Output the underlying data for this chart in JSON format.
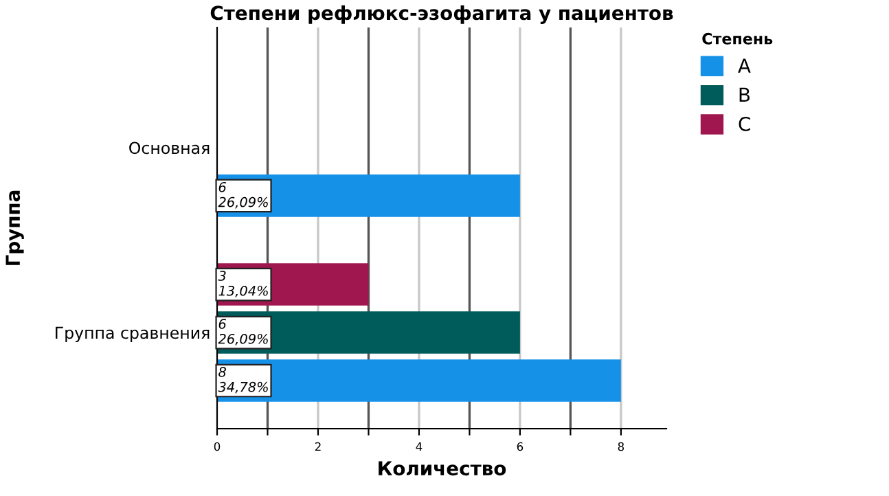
{
  "chart_data": {
    "type": "bar",
    "orientation": "horizontal",
    "title": "Степени рефлюкс-эзофагита у пациентов",
    "xlabel": "Количество",
    "ylabel": "Группа",
    "legend_title": "Степень",
    "legend": "top right",
    "grid": "x",
    "categories": [
      "Основная",
      "Группа сравнения"
    ],
    "series": [
      {
        "name": "A",
        "color": "#1591e8",
        "values": [
          6,
          8
        ],
        "value_labels": [
          "6\n26,09%",
          "8\n34,78%"
        ]
      },
      {
        "name": "B",
        "color": "#005c5a",
        "values": [
          null,
          6
        ],
        "value_labels": [
          null,
          "6\n26,09%"
        ]
      },
      {
        "name": "C",
        "color": "#a0174f",
        "values": [
          null,
          3
        ],
        "value_labels": [
          null,
          "3\n13,04%"
        ]
      }
    ],
    "xlim": [
      0,
      8.9
    ],
    "xticks": [
      0,
      {
        "value": 1,
        "label": null
      },
      2,
      {
        "value": 3,
        "label": null
      },
      4,
      {
        "value": 5,
        "label": null
      },
      6,
      {
        "value": 7,
        "label": null
      },
      8
    ]
  }
}
